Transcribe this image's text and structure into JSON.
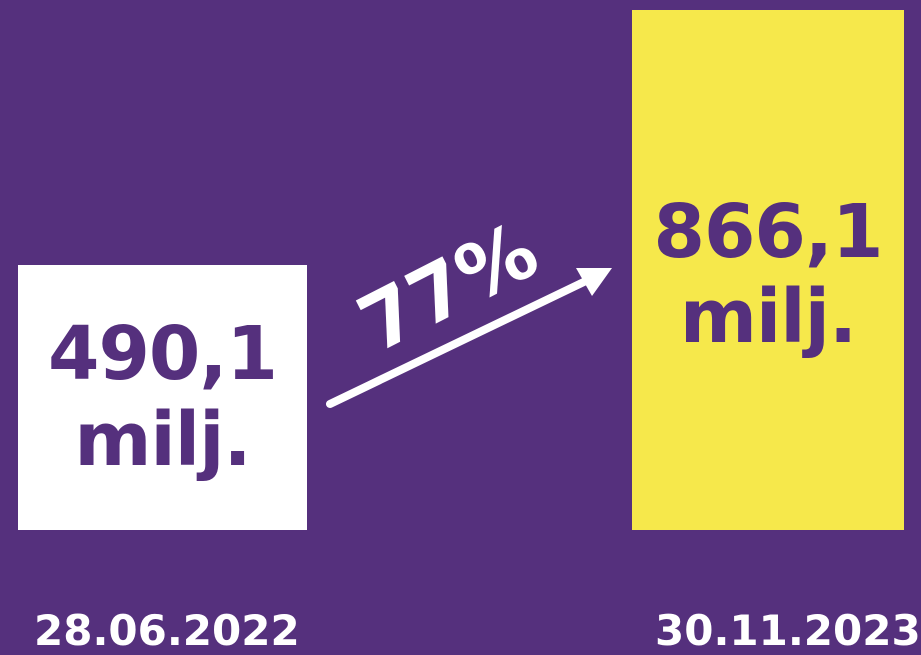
{
  "colors": {
    "background": "#55307d",
    "bar_first": "#ffffff",
    "bar_second": "#f6e84b",
    "text_on_bar": "#55307d",
    "text_on_background": "#ffffff"
  },
  "chart_data": {
    "type": "bar",
    "categories": [
      "28.06.2022",
      "30.11.2023"
    ],
    "values": [
      490.1,
      866.1
    ],
    "value_labels": [
      {
        "number": "490,1",
        "unit": "milj."
      },
      {
        "number": "866,1",
        "unit": "milj."
      }
    ],
    "growth_label": "77%",
    "title": "",
    "xlabel": "",
    "ylabel": ""
  }
}
